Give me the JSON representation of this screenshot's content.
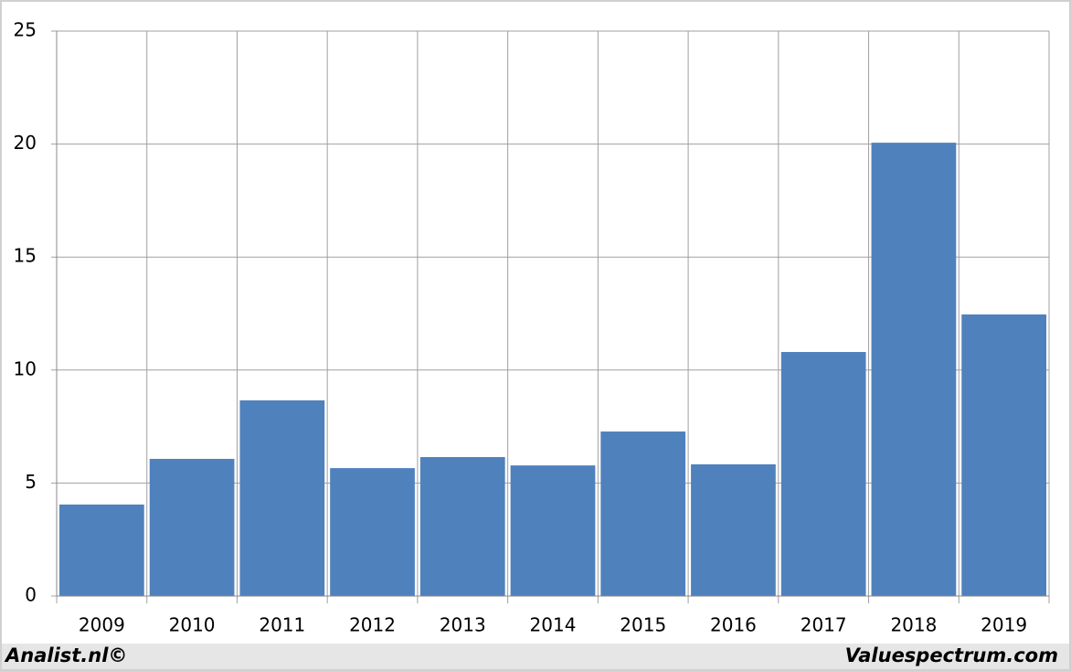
{
  "chart_data": {
    "type": "bar",
    "categories": [
      "2009",
      "2010",
      "2011",
      "2012",
      "2013",
      "2014",
      "2015",
      "2016",
      "2017",
      "2018",
      "2019"
    ],
    "values": [
      4.05,
      6.07,
      8.66,
      5.66,
      6.15,
      5.78,
      7.28,
      5.83,
      10.8,
      20.06,
      12.46
    ],
    "color": "#4f81bd",
    "ylim": [
      0,
      25
    ],
    "yticks": [
      0,
      5,
      10,
      15,
      20,
      25
    ],
    "grid": true,
    "credit": "Analist.nl©",
    "source": "Valuespectrum.com"
  }
}
